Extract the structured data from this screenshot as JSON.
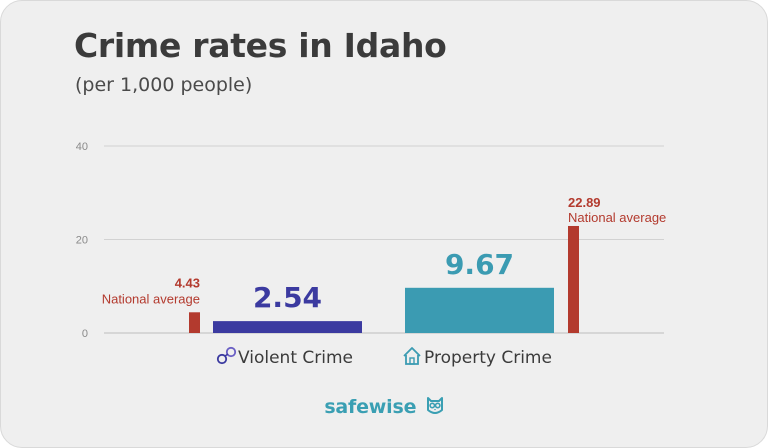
{
  "header": {
    "title": "Crime rates in Idaho",
    "subtitle": "(per 1,000 people)"
  },
  "chart_data": {
    "type": "bar",
    "categories": [
      "Violent Crime",
      "Property Crime"
    ],
    "category_icons": [
      "handcuffs-icon",
      "house-icon"
    ],
    "series": [
      {
        "values": [
          2.54,
          9.67
        ],
        "colors": [
          "#3b3aa0",
          "#3b9bb2"
        ]
      },
      {
        "name": "National average",
        "values": [
          4.43,
          22.89
        ],
        "color": "#b33a2e"
      }
    ],
    "data_labels": [
      "2.54",
      "9.67"
    ],
    "national_labels": [
      "4.43",
      "22.89"
    ],
    "national_label_text": "National average",
    "yticks": [
      0,
      20,
      40
    ],
    "ylim": [
      0,
      40
    ],
    "grid": true
  },
  "footer": {
    "brand": "safewise",
    "brand_icon": "owl-icon"
  }
}
